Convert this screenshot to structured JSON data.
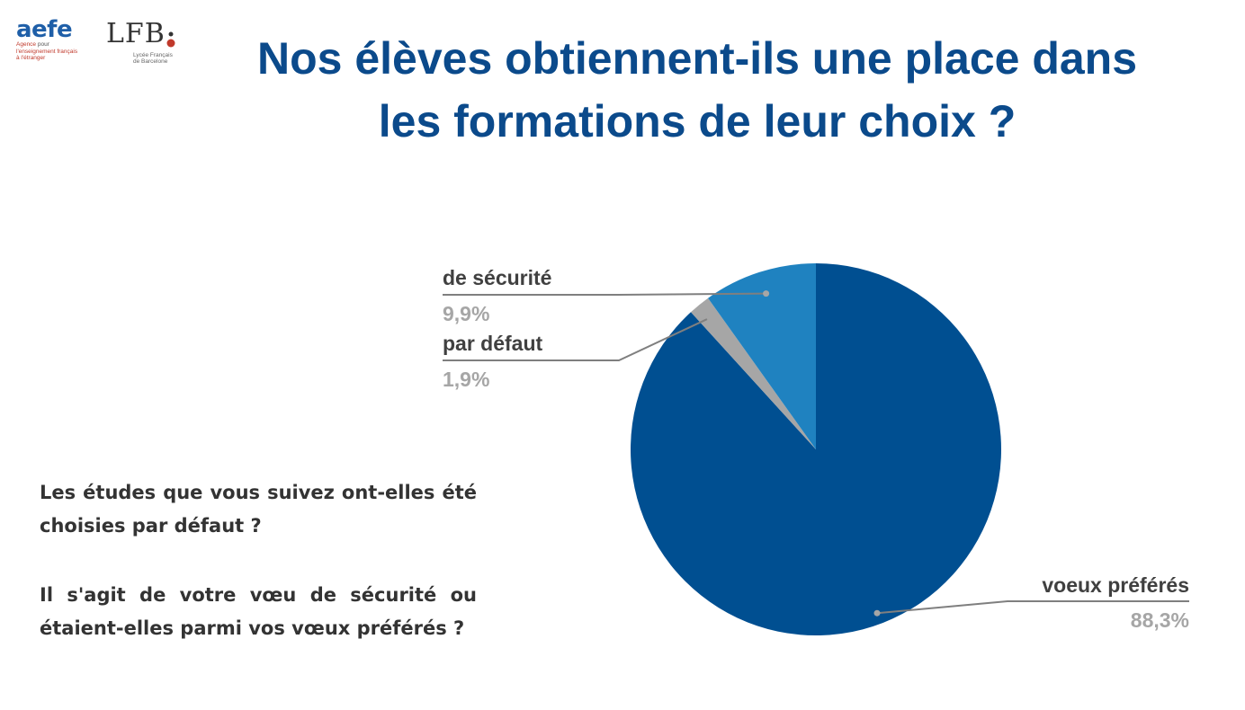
{
  "logos": {
    "aefe": {
      "word": "aefe",
      "line1_red": "Agence",
      "line1_rest": " pour",
      "line2": "l'enseignement français",
      "line3": "à l'étranger"
    },
    "lfb": {
      "mark": "LFB",
      "line1": "Lycée Français",
      "line2": "de Barcelone"
    }
  },
  "title": {
    "line1": "Nos élèves obtiennent-ils une place dans",
    "line2": "les formations de leur choix  ?"
  },
  "question": {
    "p1": "Les études que vous suivez ont-elles été choisies par défaut ?",
    "p2": "Il s'agit de votre vœu de sécurité ou étaient-elles parmi vos vœux préférés ?"
  },
  "chart_data": {
    "type": "pie",
    "start": "12 o'clock, clockwise",
    "slices": [
      {
        "label": "voeux préférés",
        "value": 88.3,
        "value_label": "88,3%",
        "color": "#004f91"
      },
      {
        "label": "par défaut",
        "value": 1.9,
        "value_label": "1,9%",
        "color": "#a6a6a6"
      },
      {
        "label": "de sécurité",
        "value": 9.9,
        "value_label": "9,9%",
        "color": "#1f82c0"
      }
    ],
    "leader_line_color": "#7f7f7f"
  }
}
